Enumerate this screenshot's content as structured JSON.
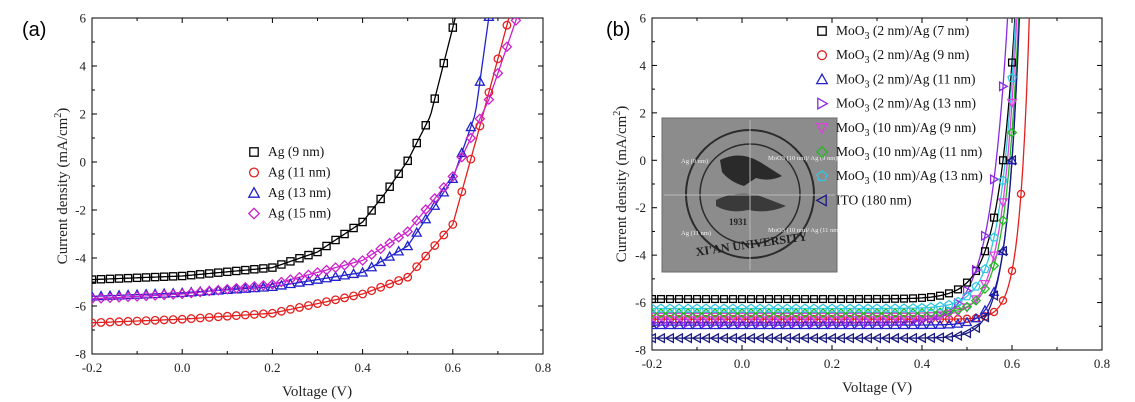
{
  "chart_data": [
    {
      "panel_label": "(a)",
      "type": "scatter",
      "xlabel": "Voltage (V)",
      "ylabel": "Current density (mA/cm2)",
      "ylabel_parts": {
        "base": "Current density (mA/cm",
        "sup": "2",
        "end": ")"
      },
      "xlim": [
        -0.2,
        0.8
      ],
      "ylim": [
        -8,
        6
      ],
      "xticks": [
        "-0.2",
        "0.0",
        "0.2",
        "0.4",
        "0.6",
        "0.8"
      ],
      "yticks": [
        "-8",
        "-6",
        "-4",
        "-2",
        "0",
        "2",
        "4",
        "6"
      ],
      "legend_position": "center-right",
      "series": [
        {
          "name": "Ag (9 nm)",
          "marker": "square",
          "color": "#000000",
          "jsc": -4.9,
          "voc": 0.495,
          "n": 0.0345,
          "fit": [
            [
              -0.2,
              -4.9
            ],
            [
              0.0,
              -4.75
            ],
            [
              0.2,
              -4.4
            ],
            [
              0.3,
              -3.75
            ],
            [
              0.4,
              -2.5
            ],
            [
              0.45,
              -1.3
            ],
            [
              0.5,
              0.05
            ],
            [
              0.55,
              1.9
            ],
            [
              0.6,
              5.6
            ]
          ]
        },
        {
          "name": "Ag (11 nm)",
          "marker": "circle",
          "color": "#e32020",
          "jsc": -6.7,
          "voc": 0.632,
          "n": 0.0162,
          "fit": [
            [
              -0.2,
              -6.7
            ],
            [
              0.0,
              -6.55
            ],
            [
              0.2,
              -6.3
            ],
            [
              0.4,
              -5.5
            ],
            [
              0.5,
              -4.8
            ],
            [
              0.6,
              -2.6
            ],
            [
              0.65,
              0.8
            ],
            [
              0.68,
              2.9
            ]
          ]
        },
        {
          "name": "Ag (13 nm)",
          "marker": "triangle",
          "color": "#2222cc",
          "jsc": -5.6,
          "voc": 0.613,
          "n": 0.0174,
          "fit": [
            [
              -0.2,
              -5.6
            ],
            [
              0.0,
              -5.45
            ],
            [
              0.2,
              -5.2
            ],
            [
              0.4,
              -4.6
            ],
            [
              0.5,
              -3.5
            ],
            [
              0.6,
              -0.7
            ],
            [
              0.65,
              2.0
            ],
            [
              0.67,
              4.7
            ]
          ]
        },
        {
          "name": "Ag (15 nm)",
          "marker": "diamond",
          "color": "#cc22cc",
          "jsc": -5.7,
          "voc": 0.622,
          "n": 0.0272,
          "fit": [
            [
              -0.2,
              -5.7
            ],
            [
              0.0,
              -5.5
            ],
            [
              0.2,
              -5.1
            ],
            [
              0.4,
              -4.1
            ],
            [
              0.5,
              -2.9
            ],
            [
              0.6,
              -0.6
            ],
            [
              0.68,
              2.6
            ],
            [
              0.72,
              4.8
            ]
          ]
        }
      ]
    },
    {
      "panel_label": "(b)",
      "type": "scatter",
      "xlabel": "Voltage (V)",
      "ylabel": "Current density (mA/cm2)",
      "ylabel_parts": {
        "base": "Current density (mA/cm",
        "sup": "2",
        "end": ")"
      },
      "xlim": [
        -0.2,
        0.8
      ],
      "ylim": [
        -8,
        6
      ],
      "xticks": [
        "-0.2",
        "0.0",
        "0.2",
        "0.4",
        "0.6",
        "0.8"
      ],
      "yticks": [
        "-8",
        "-6",
        "-4",
        "-2",
        "0",
        "2",
        "4",
        "6"
      ],
      "legend_position": "top-right",
      "series": [
        {
          "name": "MoO3 (2 nm)/Ag (7 nm)",
          "label_parts": [
            "MoO",
            "3",
            " (2 nm)/Ag (7 nm)"
          ],
          "marker": "square",
          "color": "#000000",
          "jsc": -5.85,
          "voc": 0.58,
          "n": 0.0375
        },
        {
          "name": "MoO3 (2 nm)/Ag (9 nm)",
          "label_parts": [
            "MoO",
            "3",
            " (2 nm)/Ag (9 nm)"
          ],
          "marker": "circle",
          "color": "#e32020",
          "jsc": -6.7,
          "voc": 0.625,
          "n": 0.021
        },
        {
          "name": "MoO3 (2 nm)/Ag (11 nm)",
          "label_parts": [
            "MoO",
            "3",
            " (2 nm)/Ag (11 nm)"
          ],
          "marker": "triangle",
          "color": "#2222cc",
          "jsc": -6.95,
          "voc": 0.6,
          "n": 0.025
        },
        {
          "name": "MoO3 (2 nm)/Ag (13 nm)",
          "label_parts": [
            "MoO",
            "3",
            " (2 nm)/Ag (13 nm)"
          ],
          "marker": "triangle-right",
          "color": "#8a2be2",
          "jsc": -6.85,
          "voc": 0.565,
          "n": 0.04
        },
        {
          "name": "MoO3 (10 nm)/Ag (9 nm)",
          "label_parts": [
            "MoO",
            "3",
            " (10 nm)/Ag (9 nm)"
          ],
          "marker": "triangle-down",
          "color": "#e040e0",
          "jsc": -6.6,
          "voc": 0.59,
          "n": 0.032
        },
        {
          "name": "MoO3 (10 nm)/Ag (11 nm)",
          "label_parts": [
            "MoO",
            "3",
            " (10 nm)/Ag (11 nm)"
          ],
          "marker": "diamond",
          "color": "#22bb22",
          "jsc": -6.45,
          "voc": 0.595,
          "n": 0.03
        },
        {
          "name": "MoO3 (10 nm)/Ag (13 nm)",
          "label_parts": [
            "MoO",
            "3",
            " (10 nm)/Ag (13 nm)"
          ],
          "marker": "pentagon",
          "color": "#33c6e0",
          "jsc": -6.25,
          "voc": 0.585,
          "n": 0.034
        },
        {
          "name": "ITO (180 nm)",
          "label_parts": [
            "ITO (180 nm)",
            "",
            ""
          ],
          "marker": "triangle-left",
          "color": "#1a1a80",
          "jsc": -7.5,
          "voc": 0.6,
          "n": 0.028
        }
      ],
      "inset": {
        "description": "photograph of devices on a seal",
        "quadrant_labels": [
          "Ag (9 nm)",
          "MoO3 (10 nm)/ Ag (9 nm)",
          "Ag (11 nm)",
          "MoO3 (10 nm)/ Ag (11 nm)"
        ],
        "seal_text": "XI'AN UNIVERSITY",
        "seal_year": "1931"
      }
    }
  ]
}
